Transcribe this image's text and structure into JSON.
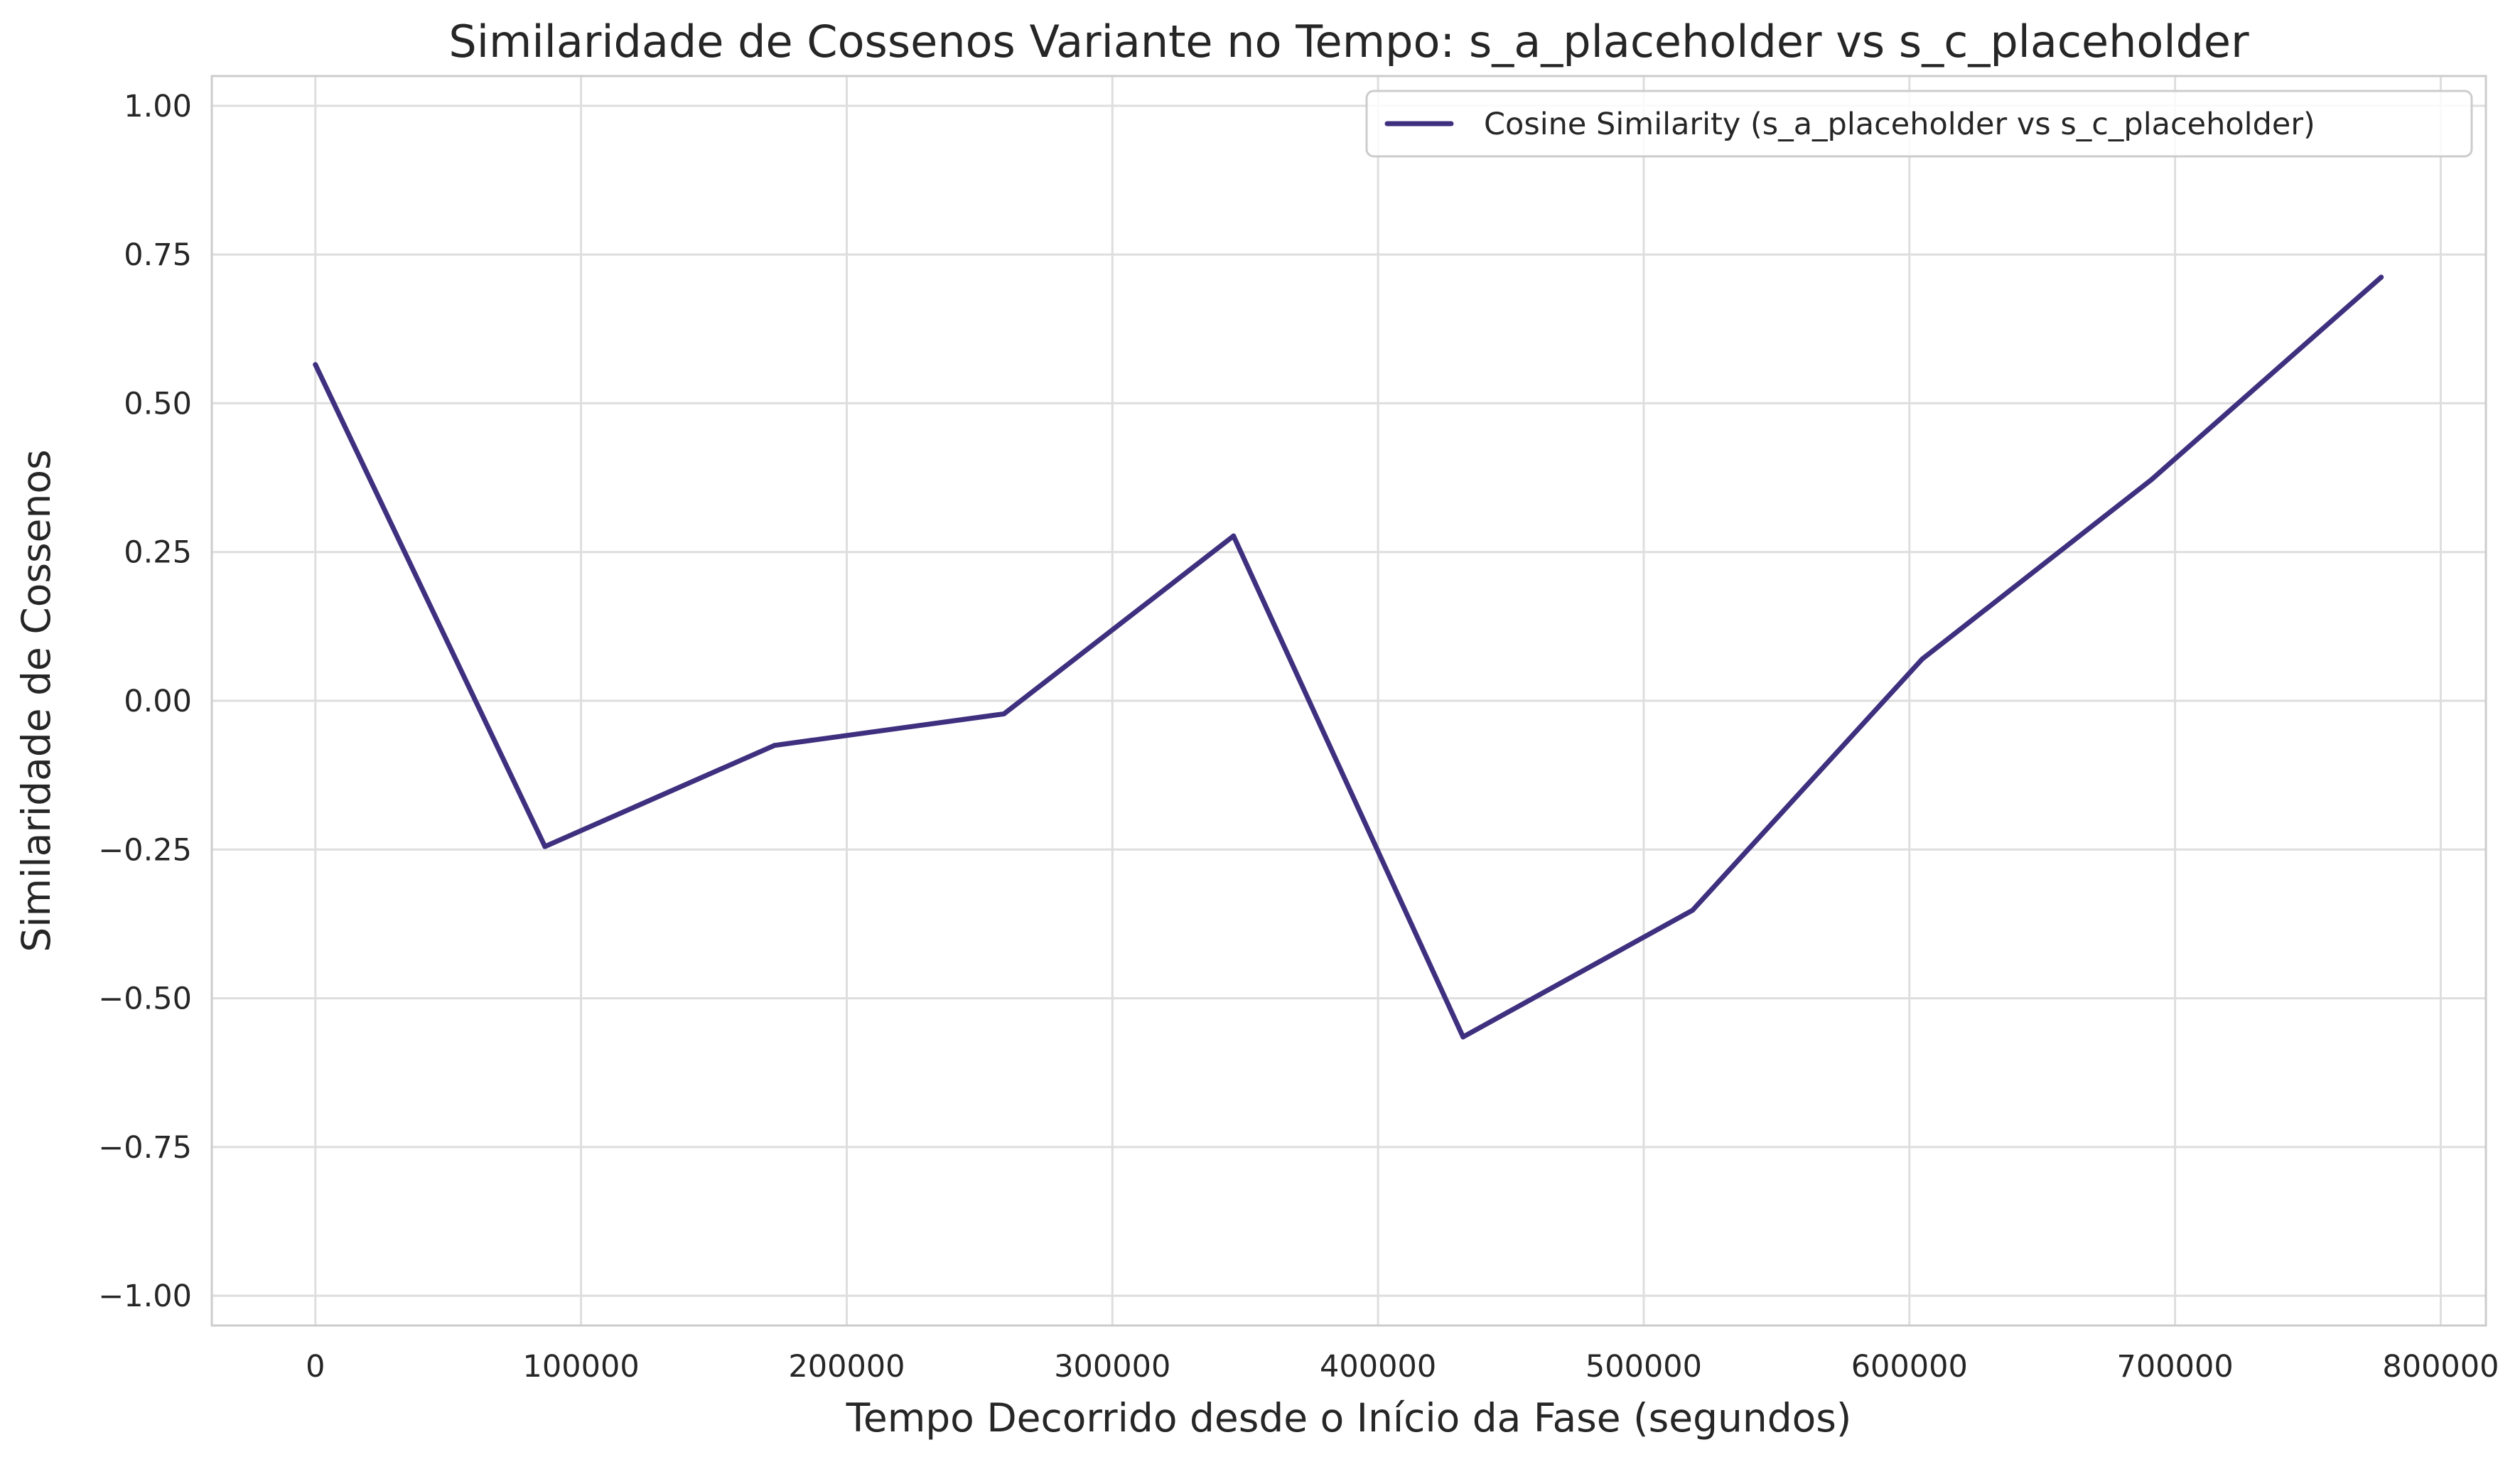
{
  "chart_data": {
    "type": "line",
    "title": "Similaridade de Cossenos Variante no Tempo: s_a_placeholder vs s_c_placeholder",
    "xlabel": "Tempo Decorrido desde o Início da Fase (segundos)",
    "ylabel": "Similaridade de Cossenos",
    "xlim": [
      -39000,
      817000
    ],
    "ylim": [
      -1.05,
      1.05
    ],
    "x_ticks": [
      0,
      100000,
      200000,
      300000,
      400000,
      500000,
      600000,
      700000,
      800000
    ],
    "x_tick_labels": [
      "0",
      "100000",
      "200000",
      "300000",
      "400000",
      "500000",
      "600000",
      "700000",
      "800000"
    ],
    "y_ticks": [
      1.0,
      0.75,
      0.5,
      0.25,
      0.0,
      -0.25,
      -0.5,
      -0.75,
      -1.0
    ],
    "y_tick_labels": [
      "1.00",
      "0.75",
      "0.50",
      "0.25",
      "0.00",
      "−0.25",
      "−0.50",
      "−0.75",
      "−1.00"
    ],
    "grid": true,
    "legend_position": "top-right",
    "series": [
      {
        "name": "Cosine Similarity (s_a_placeholder vs s_c_placeholder)",
        "color": "#3f307f",
        "x": [
          0,
          86400,
          172800,
          259200,
          345600,
          432000,
          518400,
          604800,
          691200,
          777600
        ],
        "y": [
          0.565,
          -0.245,
          -0.075,
          -0.022,
          0.277,
          -0.565,
          -0.352,
          0.07,
          0.372,
          0.712
        ]
      }
    ]
  }
}
